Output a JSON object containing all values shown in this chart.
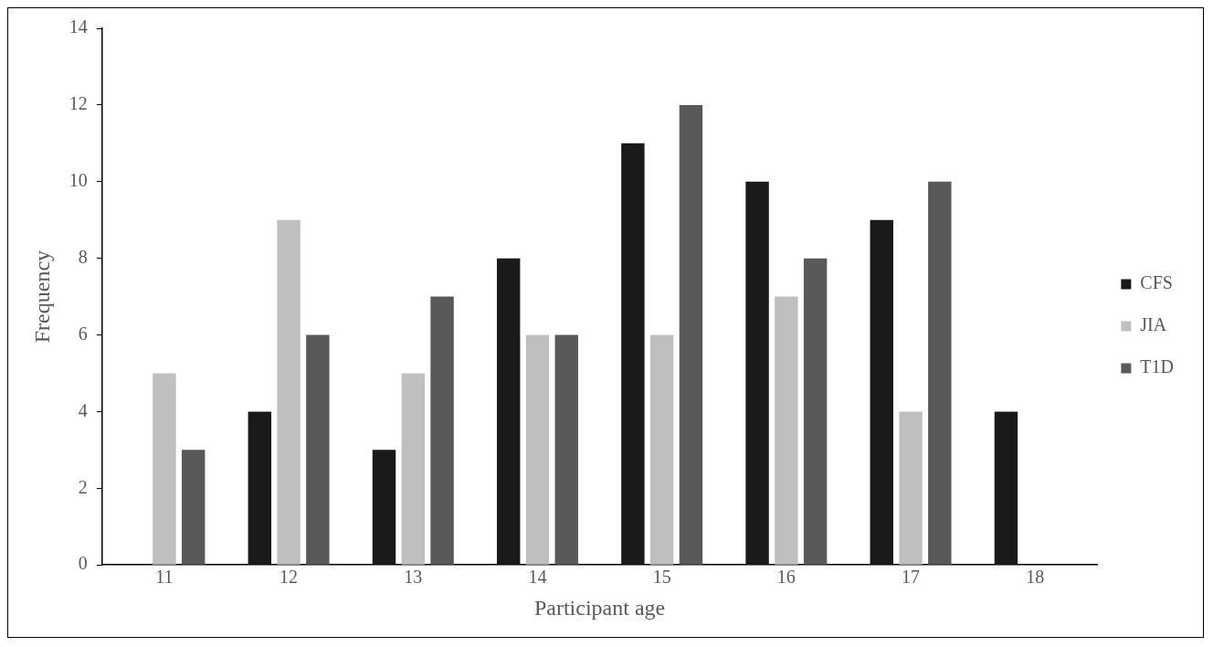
{
  "chart_data": {
    "type": "bar",
    "xlabel": "Participant age",
    "ylabel": "Frequency",
    "categories": [
      "11",
      "12",
      "13",
      "14",
      "15",
      "16",
      "17",
      "18"
    ],
    "series": [
      {
        "name": "CFS",
        "color": "#1a1a1a",
        "values": [
          0,
          4,
          3,
          8,
          11,
          10,
          9,
          4
        ]
      },
      {
        "name": "JIA",
        "color": "#bfbfbf",
        "values": [
          5,
          9,
          5,
          6,
          6,
          7,
          4,
          0
        ]
      },
      {
        "name": "T1D",
        "color": "#595959",
        "values": [
          3,
          6,
          7,
          6,
          12,
          8,
          10,
          0
        ]
      }
    ],
    "ylim": [
      0,
      14
    ],
    "yticks": [
      0,
      2,
      4,
      6,
      8,
      10,
      12,
      14
    ],
    "grid": false,
    "legend": "right"
  }
}
